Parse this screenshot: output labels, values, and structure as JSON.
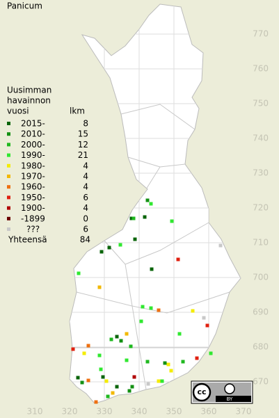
{
  "title": "Panicum",
  "legend": {
    "header": [
      "Uusimman",
      "havainnon",
      "vuosi"
    ],
    "count_header": "lkm",
    "items": [
      {
        "label": "2015-",
        "count": 8,
        "color": "#0a640a"
      },
      {
        "label": "2010-",
        "count": 15,
        "color": "#139013"
      },
      {
        "label": "2000-",
        "count": 12,
        "color": "#1fb81f"
      },
      {
        "label": "1990-",
        "count": 21,
        "color": "#30e830"
      },
      {
        "label": "1980-",
        "count": 4,
        "color": "#f4ec00"
      },
      {
        "label": "1970-",
        "count": 4,
        "color": "#f2b800"
      },
      {
        "label": "1960-",
        "count": 4,
        "color": "#ee7010"
      },
      {
        "label": "1950-",
        "count": 6,
        "color": "#e02010"
      },
      {
        "label": "1900-",
        "count": 4,
        "color": "#b00000"
      },
      {
        "label": "-1899",
        "count": 0,
        "color": "#6a0000"
      },
      {
        "label": "???",
        "count": 6,
        "color": "#c8c8c8"
      }
    ],
    "total_label": "Yhteensä",
    "total": 84
  },
  "map": {
    "xlim": [
      302,
      382
    ],
    "ylim": [
      660,
      780
    ],
    "xticks": [
      310,
      320,
      330,
      340,
      350,
      360,
      370
    ],
    "yticks": [
      670,
      680,
      690,
      700,
      710,
      720,
      730,
      740,
      750,
      760,
      770
    ],
    "points": [
      {
        "x": 342.4,
        "y": 722.2,
        "class": 1
      },
      {
        "x": 343.4,
        "y": 721.2,
        "class": 3
      },
      {
        "x": 337.8,
        "y": 717,
        "class": 0
      },
      {
        "x": 338.4,
        "y": 717,
        "class": 2
      },
      {
        "x": 341.6,
        "y": 717.4,
        "class": 0
      },
      {
        "x": 349.4,
        "y": 716.2,
        "class": 3
      },
      {
        "x": 338.8,
        "y": 711,
        "class": 0
      },
      {
        "x": 334.6,
        "y": 709.4,
        "class": 3
      },
      {
        "x": 331.4,
        "y": 708.6,
        "class": 0
      },
      {
        "x": 329.2,
        "y": 707.4,
        "class": 0
      },
      {
        "x": 351.2,
        "y": 705.2,
        "class": 7
      },
      {
        "x": 363.4,
        "y": 709.2,
        "class": 10
      },
      {
        "x": 343.6,
        "y": 702.4,
        "class": 0
      },
      {
        "x": 322.6,
        "y": 701.2,
        "class": 3
      },
      {
        "x": 328.6,
        "y": 697.2,
        "class": 5
      },
      {
        "x": 341,
        "y": 691.6,
        "class": 3
      },
      {
        "x": 343.4,
        "y": 691.2,
        "class": 3
      },
      {
        "x": 345.6,
        "y": 690.6,
        "class": 6
      },
      {
        "x": 355.4,
        "y": 690.4,
        "class": 4
      },
      {
        "x": 358.6,
        "y": 688.4,
        "class": 10
      },
      {
        "x": 359.6,
        "y": 686.2,
        "class": 7
      },
      {
        "x": 340.6,
        "y": 687.4,
        "class": 3
      },
      {
        "x": 351.6,
        "y": 683.8,
        "class": 3
      },
      {
        "x": 336.4,
        "y": 683.8,
        "class": 5
      },
      {
        "x": 333.6,
        "y": 683,
        "class": 0
      },
      {
        "x": 332,
        "y": 682.2,
        "class": 2
      },
      {
        "x": 334.8,
        "y": 681.8,
        "class": 1
      },
      {
        "x": 337.6,
        "y": 680.2,
        "class": 2
      },
      {
        "x": 325.4,
        "y": 680.4,
        "class": 6
      },
      {
        "x": 321,
        "y": 679.4,
        "class": 7
      },
      {
        "x": 324.2,
        "y": 678.2,
        "class": 4
      },
      {
        "x": 328.6,
        "y": 677.6,
        "class": 3
      },
      {
        "x": 336.4,
        "y": 676.2,
        "class": 3
      },
      {
        "x": 342.4,
        "y": 675.8,
        "class": 2
      },
      {
        "x": 347.4,
        "y": 675.4,
        "class": 1
      },
      {
        "x": 348.4,
        "y": 675,
        "class": 4
      },
      {
        "x": 352.6,
        "y": 675.8,
        "class": 2
      },
      {
        "x": 356.6,
        "y": 676.8,
        "class": 7
      },
      {
        "x": 360.6,
        "y": 678.2,
        "class": 3
      },
      {
        "x": 329,
        "y": 673.6,
        "class": 3
      },
      {
        "x": 322.4,
        "y": 671.2,
        "class": 0
      },
      {
        "x": 323.6,
        "y": 669.8,
        "class": 1
      },
      {
        "x": 325.4,
        "y": 670.4,
        "class": 6
      },
      {
        "x": 329.6,
        "y": 671.4,
        "class": 0
      },
      {
        "x": 330.6,
        "y": 670.2,
        "class": 4
      },
      {
        "x": 333.6,
        "y": 668.6,
        "class": 0
      },
      {
        "x": 338,
        "y": 668.6,
        "class": 1
      },
      {
        "x": 338.6,
        "y": 671.4,
        "class": 8
      },
      {
        "x": 342.6,
        "y": 669.4,
        "class": 10
      },
      {
        "x": 345.6,
        "y": 670.2,
        "class": 4
      },
      {
        "x": 346.6,
        "y": 670.2,
        "class": 3
      },
      {
        "x": 349.2,
        "y": 673.2,
        "class": 4
      },
      {
        "x": 331,
        "y": 665.8,
        "class": 2
      },
      {
        "x": 327.6,
        "y": 664.2,
        "class": 6
      },
      {
        "x": 337.2,
        "y": 667.4,
        "class": 1
      },
      {
        "x": 332.4,
        "y": 666.8,
        "class": 5
      }
    ]
  },
  "badge": {
    "cc": "cc",
    "by": "BY"
  }
}
